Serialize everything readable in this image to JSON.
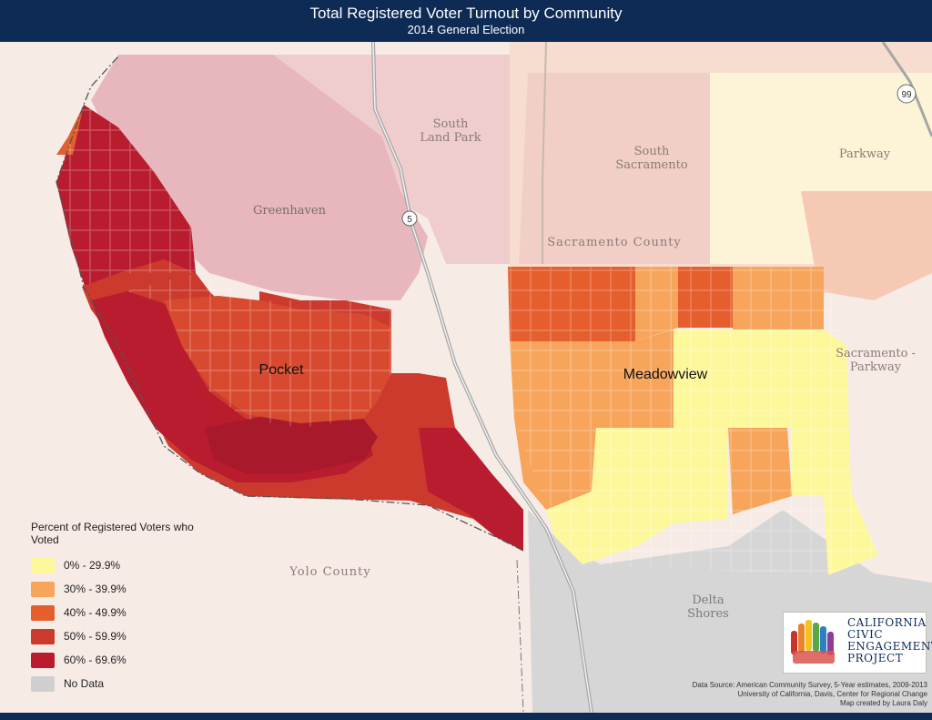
{
  "title": "Total Registered Voter Turnout by Community",
  "subtitle": "2014 General Election",
  "place_labels": {
    "south_land_park": [
      "South",
      "Land Park"
    ],
    "south_sacramento": [
      "South",
      "Sacramento"
    ],
    "parkway": "Parkway",
    "greenhaven": "Greenhaven",
    "sacramento_county": "Sacramento County",
    "pocket": "Pocket",
    "meadowview": "Meadowview",
    "sacramento_parkway": [
      "Sacramento -",
      "Parkway"
    ],
    "yolo_county": "Yolo County",
    "delta_shores": [
      "Delta",
      "Shores"
    ]
  },
  "highway_shields": {
    "i5": "5",
    "sr99": "99"
  },
  "legend": {
    "title": "Percent of Registered Voters who Voted",
    "items": [
      {
        "label": "0% - 29.9%",
        "color": "#fef89d"
      },
      {
        "label": "30% - 39.9%",
        "color": "#f8a55c"
      },
      {
        "label": "40% - 49.9%",
        "color": "#e55e2d"
      },
      {
        "label": "50% - 59.9%",
        "color": "#cc3a2e"
      },
      {
        "label": "60% - 69.6%",
        "color": "#b81c2e"
      },
      {
        "label": "No Data",
        "color": "#cfcfcf"
      }
    ]
  },
  "logo": {
    "lines": [
      "CALIFORNIA",
      "CIVIC",
      "ENGAGEMENT",
      "PROJECT"
    ]
  },
  "source": [
    "Data Source: American Community Survey, 5-Year estimates, 2009-2013",
    "University of California, Davis, Center for Regional Change",
    "Map created by Laura Daly"
  ]
}
